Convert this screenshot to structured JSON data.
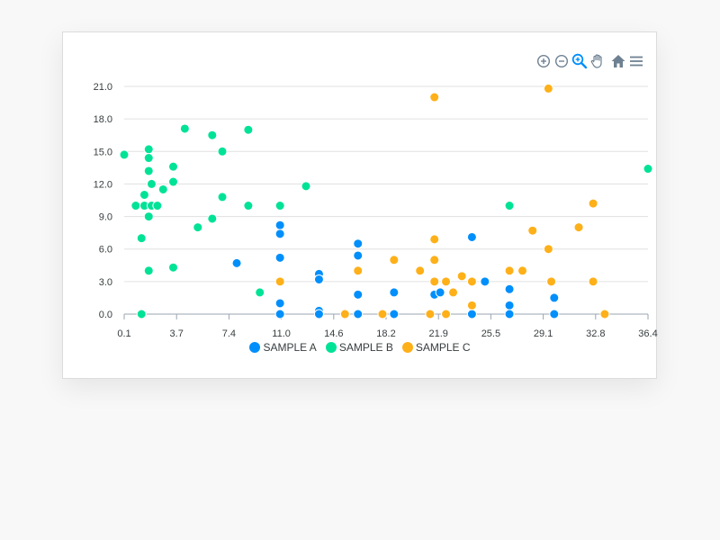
{
  "toolbar": {
    "icons": [
      "zoom-in-icon",
      "zoom-out-icon",
      "selection-zoom-icon",
      "pan-icon",
      "reset-home-icon",
      "menu-icon"
    ],
    "active_color": "#008ffb",
    "icon_color": "#6e8192"
  },
  "chart_data": {
    "type": "scatter",
    "title": "",
    "xlabel": "",
    "ylabel": "",
    "xlim": [
      0.1,
      36.4
    ],
    "ylim": [
      0,
      21
    ],
    "x_ticks": [
      "0.1",
      "3.7",
      "7.4",
      "11.0",
      "14.6",
      "18.2",
      "21.9",
      "25.5",
      "29.1",
      "32.8",
      "36.4"
    ],
    "y_ticks": [
      "0.0",
      "3.0",
      "6.0",
      "9.0",
      "12.0",
      "15.0",
      "18.0",
      "21.0"
    ],
    "grid": "horizontal",
    "legend_position": "bottom",
    "series": [
      {
        "name": "SAMPLE A",
        "color": "#008ffb",
        "points": [
          [
            7.9,
            4.7
          ],
          [
            10.9,
            8.2
          ],
          [
            10.9,
            7.4
          ],
          [
            10.9,
            5.2
          ],
          [
            10.9,
            1.0
          ],
          [
            10.9,
            0.0
          ],
          [
            13.6,
            3.7
          ],
          [
            13.6,
            3.2
          ],
          [
            13.6,
            0.3
          ],
          [
            13.6,
            0.0
          ],
          [
            16.3,
            6.5
          ],
          [
            16.3,
            5.4
          ],
          [
            16.3,
            1.8
          ],
          [
            16.3,
            0.0
          ],
          [
            18.8,
            2.0
          ],
          [
            18.8,
            0.0
          ],
          [
            21.6,
            1.8
          ],
          [
            22.0,
            2.0
          ],
          [
            24.2,
            7.1
          ],
          [
            24.2,
            0.0
          ],
          [
            25.1,
            3.0
          ],
          [
            26.8,
            2.3
          ],
          [
            26.8,
            0.8
          ],
          [
            26.8,
            0.0
          ],
          [
            29.9,
            1.5
          ],
          [
            29.9,
            0.0
          ]
        ]
      },
      {
        "name": "SAMPLE B",
        "color": "#00e396",
        "points": [
          [
            0.1,
            14.7
          ],
          [
            0.9,
            10.0
          ],
          [
            1.3,
            7.0
          ],
          [
            1.3,
            0.0
          ],
          [
            1.5,
            11.0
          ],
          [
            1.5,
            10.0
          ],
          [
            1.8,
            15.2
          ],
          [
            1.8,
            14.4
          ],
          [
            1.8,
            13.2
          ],
          [
            1.8,
            9.0
          ],
          [
            1.8,
            4.0
          ],
          [
            2.0,
            12.0
          ],
          [
            2.0,
            10.0
          ],
          [
            2.4,
            10.0
          ],
          [
            2.8,
            11.5
          ],
          [
            3.5,
            13.6
          ],
          [
            3.5,
            12.2
          ],
          [
            3.5,
            4.3
          ],
          [
            4.3,
            17.1
          ],
          [
            5.2,
            8.0
          ],
          [
            6.2,
            16.5
          ],
          [
            6.2,
            8.8
          ],
          [
            6.9,
            15.0
          ],
          [
            6.9,
            10.8
          ],
          [
            8.7,
            17.0
          ],
          [
            8.7,
            10.0
          ],
          [
            9.5,
            2.0
          ],
          [
            10.9,
            10.0
          ],
          [
            12.7,
            11.8
          ],
          [
            26.8,
            10.0
          ],
          [
            36.4,
            13.4
          ]
        ]
      },
      {
        "name": "SAMPLE C",
        "color": "#feb019",
        "points": [
          [
            10.9,
            3.0
          ],
          [
            15.4,
            0.0
          ],
          [
            16.3,
            4.0
          ],
          [
            18.0,
            0.0
          ],
          [
            18.8,
            5.0
          ],
          [
            20.6,
            4.0
          ],
          [
            21.3,
            0.0
          ],
          [
            21.6,
            20.0
          ],
          [
            21.6,
            6.9
          ],
          [
            21.6,
            5.0
          ],
          [
            21.6,
            3.0
          ],
          [
            22.4,
            3.0
          ],
          [
            22.4,
            0.0
          ],
          [
            22.9,
            2.0
          ],
          [
            23.5,
            3.5
          ],
          [
            24.2,
            3.0
          ],
          [
            24.2,
            0.8
          ],
          [
            26.8,
            4.0
          ],
          [
            27.7,
            4.0
          ],
          [
            28.4,
            7.7
          ],
          [
            29.5,
            20.8
          ],
          [
            29.5,
            6.0
          ],
          [
            29.7,
            3.0
          ],
          [
            31.6,
            8.0
          ],
          [
            32.6,
            10.2
          ],
          [
            32.6,
            3.0
          ],
          [
            33.4,
            0.0
          ]
        ]
      }
    ]
  }
}
